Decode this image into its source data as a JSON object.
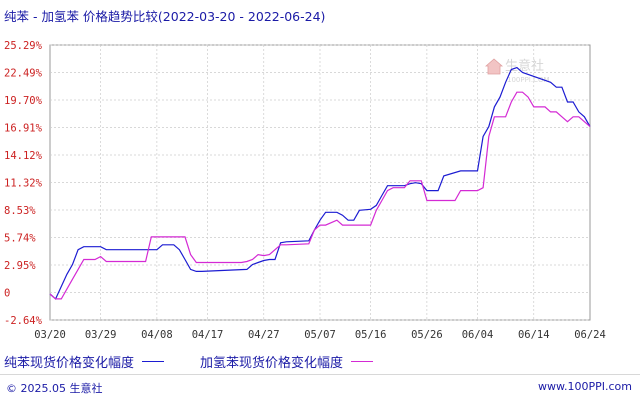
{
  "title": "纯苯 - 加氢苯 价格趋势比较(2022-03-20 - 2022-06-24)",
  "watermark": "生意社",
  "watermark_url": "100PPI.COM",
  "copyright": "© 2025.05 生意社",
  "site": "www.100PPI.com",
  "colors": {
    "series_a": "#1c1cd2",
    "series_b": "#d42ad4",
    "axis_text": "#cc2222",
    "grid": "#cccccc"
  },
  "chart_data": {
    "type": "line",
    "x_start": "03/20",
    "x_end": "06/24",
    "xticks": [
      "03/20",
      "03/29",
      "04/08",
      "04/17",
      "04/27",
      "05/07",
      "05/16",
      "05/26",
      "06/04",
      "06/14",
      "06/24"
    ],
    "yticks": [
      "25.29%",
      "22.49%",
      "19.70%",
      "16.91%",
      "14.12%",
      "11.32%",
      "8.53%",
      "5.74%",
      "2.95%",
      "0",
      "-2.64%"
    ],
    "ylim": [
      -2.64,
      25.29
    ],
    "grid": true,
    "legend_position": "bottom",
    "series": [
      {
        "name": "纯苯现货价格变化幅度",
        "points": [
          [
            "03/20",
            0
          ],
          [
            "03/21",
            -0.5
          ],
          [
            "03/23",
            2.0
          ],
          [
            "03/24",
            3.0
          ],
          [
            "03/25",
            4.5
          ],
          [
            "03/26",
            4.8
          ],
          [
            "03/29",
            4.8
          ],
          [
            "03/30",
            4.5
          ],
          [
            "04/08",
            4.5
          ],
          [
            "04/09",
            5.0
          ],
          [
            "04/11",
            5.0
          ],
          [
            "04/12",
            4.5
          ],
          [
            "04/13",
            3.5
          ],
          [
            "04/14",
            2.5
          ],
          [
            "04/15",
            2.3
          ],
          [
            "04/16",
            2.3
          ],
          [
            "04/24",
            2.5
          ],
          [
            "04/25",
            3.0
          ],
          [
            "04/26",
            3.2
          ],
          [
            "04/27",
            3.4
          ],
          [
            "04/28",
            3.5
          ],
          [
            "04/29",
            3.5
          ],
          [
            "04/30",
            5.2
          ],
          [
            "05/01",
            5.3
          ],
          [
            "05/05",
            5.4
          ],
          [
            "05/06",
            6.5
          ],
          [
            "05/07",
            7.5
          ],
          [
            "05/08",
            8.3
          ],
          [
            "05/10",
            8.3
          ],
          [
            "05/11",
            8.0
          ],
          [
            "05/12",
            7.5
          ],
          [
            "05/13",
            7.5
          ],
          [
            "05/14",
            8.5
          ],
          [
            "05/16",
            8.6
          ],
          [
            "05/17",
            9.0
          ],
          [
            "05/18",
            10.0
          ],
          [
            "05/19",
            11.0
          ],
          [
            "05/22",
            11.0
          ],
          [
            "05/23",
            11.2
          ],
          [
            "05/24",
            11.3
          ],
          [
            "05/25",
            11.2
          ],
          [
            "05/26",
            10.5
          ],
          [
            "05/28",
            10.5
          ],
          [
            "05/29",
            12.0
          ],
          [
            "06/01",
            12.5
          ],
          [
            "06/04",
            12.5
          ],
          [
            "06/05",
            16.0
          ],
          [
            "06/06",
            17.0
          ],
          [
            "06/07",
            19.0
          ],
          [
            "06/08",
            20.0
          ],
          [
            "06/09",
            21.5
          ],
          [
            "06/10",
            22.8
          ],
          [
            "06/11",
            23.0
          ],
          [
            "06/12",
            22.5
          ],
          [
            "06/17",
            21.5
          ],
          [
            "06/18",
            21.0
          ],
          [
            "06/19",
            21.0
          ],
          [
            "06/20",
            19.5
          ],
          [
            "06/21",
            19.5
          ],
          [
            "06/22",
            18.5
          ],
          [
            "06/23",
            18.0
          ],
          [
            "06/24",
            17.0
          ]
        ]
      },
      {
        "name": "加氢苯现货价格变化幅度",
        "points": [
          [
            "03/20",
            0
          ],
          [
            "03/21",
            -0.5
          ],
          [
            "03/22",
            -0.5
          ],
          [
            "03/24",
            1.5
          ],
          [
            "03/25",
            2.5
          ],
          [
            "03/26",
            3.5
          ],
          [
            "03/28",
            3.5
          ],
          [
            "03/29",
            3.8
          ],
          [
            "03/30",
            3.3
          ],
          [
            "04/06",
            3.3
          ],
          [
            "04/07",
            5.8
          ],
          [
            "04/13",
            5.8
          ],
          [
            "04/14",
            4.0
          ],
          [
            "04/15",
            3.2
          ],
          [
            "04/23",
            3.2
          ],
          [
            "04/24",
            3.3
          ],
          [
            "04/25",
            3.5
          ],
          [
            "04/26",
            4.0
          ],
          [
            "04/27",
            3.9
          ],
          [
            "04/28",
            4.0
          ],
          [
            "04/29",
            4.5
          ],
          [
            "04/30",
            5.0
          ],
          [
            "05/01",
            5.0
          ],
          [
            "05/05",
            5.1
          ],
          [
            "05/06",
            6.5
          ],
          [
            "05/07",
            7.0
          ],
          [
            "05/08",
            7.0
          ],
          [
            "05/10",
            7.5
          ],
          [
            "05/11",
            7.0
          ],
          [
            "05/16",
            7.0
          ],
          [
            "05/17",
            8.5
          ],
          [
            "05/18",
            9.5
          ],
          [
            "05/19",
            10.5
          ],
          [
            "05/20",
            10.8
          ],
          [
            "05/22",
            10.8
          ],
          [
            "05/23",
            11.5
          ],
          [
            "05/25",
            11.5
          ],
          [
            "05/26",
            9.5
          ],
          [
            "05/31",
            9.5
          ],
          [
            "06/01",
            10.5
          ],
          [
            "06/04",
            10.5
          ],
          [
            "06/05",
            10.8
          ],
          [
            "06/06",
            16.0
          ],
          [
            "06/07",
            18.0
          ],
          [
            "06/09",
            18.0
          ],
          [
            "06/10",
            19.5
          ],
          [
            "06/11",
            20.5
          ],
          [
            "06/12",
            20.5
          ],
          [
            "06/13",
            20.0
          ],
          [
            "06/14",
            19.0
          ],
          [
            "06/16",
            19.0
          ],
          [
            "06/17",
            18.5
          ],
          [
            "06/18",
            18.5
          ],
          [
            "06/19",
            18.0
          ],
          [
            "06/20",
            17.5
          ],
          [
            "06/21",
            18.0
          ],
          [
            "06/22",
            18.0
          ],
          [
            "06/23",
            17.5
          ],
          [
            "06/24",
            17.0
          ]
        ]
      }
    ]
  }
}
